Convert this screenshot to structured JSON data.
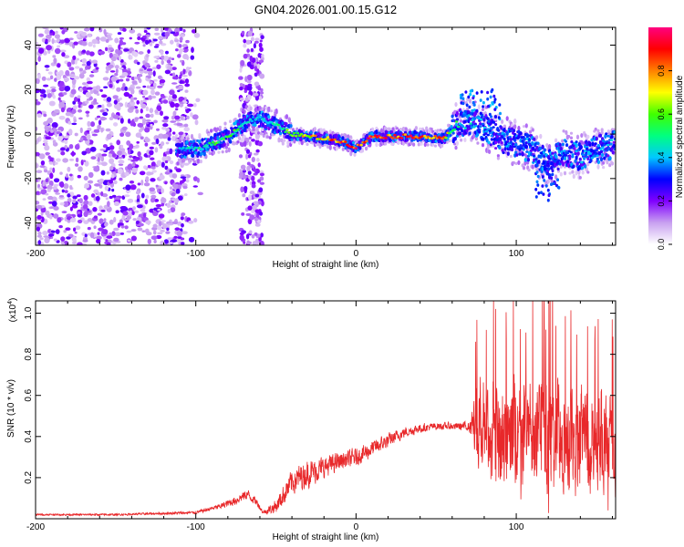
{
  "title": "GN04.2026.001.00.15.G12",
  "colors": {
    "snr_line": "#e8282a",
    "axis": "#000000",
    "background": "#ffffff"
  },
  "chart_data": [
    {
      "type": "heatmap",
      "title": "GN04.2026.001.00.15.G12",
      "xlabel": "Height of straight line (km)",
      "ylabel": "Frequency (Hz)",
      "xlim": [
        -200,
        162
      ],
      "ylim": [
        -50,
        48
      ],
      "x_ticks": [
        -200,
        -100,
        0,
        100
      ],
      "x_tick_labels": [
        "-200",
        "-100",
        "0",
        "100"
      ],
      "y_ticks": [
        -40,
        -20,
        0,
        20,
        40
      ],
      "y_tick_labels": [
        "-40",
        "-20",
        "0",
        "20",
        "40"
      ],
      "colorbar": {
        "label": "Normalized spectral amplitude",
        "range": [
          0,
          1
        ],
        "ticks": [
          0,
          0.2,
          0.4,
          0.6,
          0.8
        ],
        "tick_labels": [
          "0.0",
          "0.2",
          "0.4",
          "0.6",
          "0.8"
        ],
        "colormap": [
          "#ffffff",
          "#c8a0f0",
          "#8000ff",
          "#0000ff",
          "#00c8ff",
          "#00ff80",
          "#40ff00",
          "#ffff00",
          "#ff8000",
          "#ff0000",
          "#ff0080"
        ]
      },
      "ridge": {
        "x": [
          -110,
          -95,
          -85,
          -78,
          -70,
          -62,
          -50,
          -40,
          -30,
          -20,
          -10,
          0,
          10,
          20,
          40,
          55,
          60,
          65,
          70,
          75,
          80,
          90,
          100,
          110,
          120,
          130,
          140,
          150,
          160
        ],
        "freq": [
          -7,
          -6,
          -3,
          0,
          5,
          7,
          4,
          0,
          -1,
          -2,
          -3,
          -6,
          -1,
          -1,
          -1,
          -2,
          2,
          5,
          6,
          5,
          3,
          -2,
          -4,
          -7,
          -14,
          -8,
          -10,
          -7,
          -5
        ],
        "peak": [
          0.45,
          0.55,
          0.6,
          0.65,
          0.5,
          0.4,
          0.5,
          0.7,
          0.8,
          0.85,
          0.9,
          0.95,
          0.95,
          0.95,
          0.95,
          0.85,
          0.6,
          0.5,
          0.45,
          0.45,
          0.4,
          0.35,
          0.35,
          0.35,
          0.3,
          0.35,
          0.4,
          0.4,
          0.4
        ]
      }
    },
    {
      "type": "line",
      "xlabel": "Height of straight line (km)",
      "ylabel": "SNR (10 * v/v)",
      "y_scale_label": "(x10^4)",
      "y_scale_base": "(x10",
      "y_scale_exp": "4",
      "xlim": [
        -200,
        162
      ],
      "ylim": [
        0,
        1.06
      ],
      "x_ticks": [
        -200,
        -100,
        0,
        100
      ],
      "x_tick_labels": [
        "-200",
        "-100",
        "0",
        "100"
      ],
      "y_ticks": [
        0.2,
        0.4,
        0.6,
        0.8,
        1.0
      ],
      "y_tick_labels": [
        "0.2",
        "0.4",
        "0.6",
        "0.8",
        "1.0"
      ],
      "series": [
        {
          "name": "SNR",
          "envelope_x": [
            -200,
            -150,
            -100,
            -85,
            -75,
            -68,
            -62,
            -58,
            -50,
            -40,
            -30,
            -20,
            -10,
            0,
            10,
            20,
            30,
            40,
            50,
            60,
            70,
            72,
            75,
            85,
            100,
            120,
            140,
            162
          ],
          "envelope_mean": [
            0.02,
            0.02,
            0.03,
            0.06,
            0.09,
            0.12,
            0.08,
            0.03,
            0.06,
            0.18,
            0.22,
            0.25,
            0.28,
            0.3,
            0.34,
            0.38,
            0.42,
            0.44,
            0.45,
            0.45,
            0.45,
            0.44,
            0.4,
            0.38,
            0.37,
            0.36,
            0.35,
            0.33
          ],
          "envelope_spread": [
            0.01,
            0.01,
            0.015,
            0.03,
            0.05,
            0.06,
            0.04,
            0.02,
            0.08,
            0.14,
            0.15,
            0.12,
            0.1,
            0.1,
            0.09,
            0.08,
            0.06,
            0.05,
            0.04,
            0.04,
            0.05,
            0.12,
            0.45,
            0.5,
            0.55,
            0.6,
            0.6,
            0.55
          ]
        }
      ]
    }
  ]
}
